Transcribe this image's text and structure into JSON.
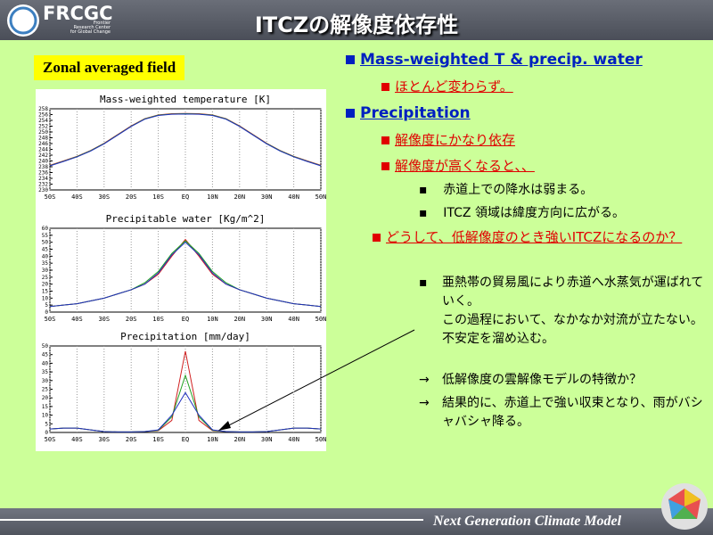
{
  "slide": {
    "title": "ITCZの解像度依存性",
    "logo": "FRCGC",
    "org": [
      "Frontier",
      "Research Center",
      "for Global Change"
    ],
    "panel_label": "Zonal averaged field",
    "footer": "Next Generation Climate Model",
    "items": [
      "Mass-weighted T & precip. water",
      "ほとんど変わらず。",
      "Precipitation",
      "解像度にかなり依存",
      "解像度が高くなると、、",
      "赤道上での降水は弱まる。",
      "ITCZ 領域は緯度方向に広がる。",
      "どうして、低解像度のとき強いITCZになるのか？",
      "亜熱帯の貿易風により赤道へ水蒸気が運ばれていく。",
      "この過程において、なかなか対流が立たない。",
      "不安定を溜め込む。",
      "低解像度の雲解像モデルの特徴か？",
      "結果的に、赤道上で強い収束となり、雨がバシャバシャ降る。"
    ]
  },
  "chart_data": [
    {
      "type": "line",
      "title": "Mass-weighted temperature [K]",
      "x": [
        -50,
        -45,
        -40,
        -35,
        -30,
        -25,
        -20,
        -15,
        -10,
        -5,
        0,
        5,
        10,
        15,
        20,
        25,
        30,
        35,
        40,
        45,
        50
      ],
      "xlim": [
        -50,
        50
      ],
      "xticks": [
        {
          "value": -50,
          "label": "50S"
        },
        {
          "value": -40,
          "label": "40S"
        },
        {
          "value": -30,
          "label": "30S"
        },
        {
          "value": -20,
          "label": "20S"
        },
        {
          "value": -10,
          "label": "10S"
        },
        {
          "value": 0,
          "label": "EQ"
        },
        {
          "value": 10,
          "label": "10N"
        },
        {
          "value": 20,
          "label": "20N"
        },
        {
          "value": 30,
          "label": "30N"
        },
        {
          "value": 40,
          "label": "40N"
        },
        {
          "value": 50,
          "label": "50N"
        }
      ],
      "ylim": [
        230,
        258
      ],
      "yticks": [
        230,
        232,
        234,
        236,
        238,
        240,
        242,
        244,
        246,
        248,
        250,
        252,
        254,
        256,
        258
      ],
      "series": [
        {
          "color": "#d02020",
          "values": [
            238.5,
            240,
            241.6,
            243.6,
            246.1,
            249.1,
            252.1,
            254.6,
            255.9,
            256.3,
            256.4,
            256.3,
            255.9,
            254.6,
            252.1,
            249.1,
            246.1,
            243.6,
            241.6,
            240,
            238.5
          ]
        },
        {
          "color": "#20a020",
          "values": [
            238.4,
            239.9,
            241.5,
            243.5,
            246,
            249,
            252,
            254.5,
            255.8,
            256.2,
            256.3,
            256.2,
            255.8,
            254.5,
            252,
            249,
            246,
            243.5,
            241.5,
            239.9,
            238.4
          ]
        },
        {
          "color": "#2030c0",
          "values": [
            238.3,
            239.8,
            241.4,
            243.4,
            245.9,
            248.9,
            251.9,
            254.4,
            255.7,
            256.1,
            256.2,
            256.1,
            255.7,
            254.4,
            251.9,
            248.9,
            245.9,
            243.4,
            241.4,
            239.8,
            238.3
          ]
        }
      ]
    },
    {
      "type": "line",
      "title": "Precipitable water [Kg/m^2]",
      "x": [
        -50,
        -45,
        -40,
        -35,
        -30,
        -25,
        -20,
        -15,
        -10,
        -5,
        0,
        5,
        10,
        15,
        20,
        25,
        30,
        35,
        40,
        45,
        50
      ],
      "xlim": [
        -50,
        50
      ],
      "xticks": [
        {
          "value": -50,
          "label": "50S"
        },
        {
          "value": -40,
          "label": "40S"
        },
        {
          "value": -30,
          "label": "30S"
        },
        {
          "value": -20,
          "label": "20S"
        },
        {
          "value": -10,
          "label": "10S"
        },
        {
          "value": 0,
          "label": "EQ"
        },
        {
          "value": 10,
          "label": "10N"
        },
        {
          "value": 20,
          "label": "20N"
        },
        {
          "value": 30,
          "label": "30N"
        },
        {
          "value": 40,
          "label": "40N"
        },
        {
          "value": 50,
          "label": "50N"
        }
      ],
      "ylim": [
        0,
        60
      ],
      "yticks": [
        0,
        5,
        10,
        15,
        20,
        25,
        30,
        35,
        40,
        45,
        50,
        55,
        60
      ],
      "series": [
        {
          "color": "#d02020",
          "values": [
            4,
            5,
            6,
            8,
            10,
            13,
            16,
            20,
            27,
            40,
            52,
            40,
            27,
            20,
            16,
            13,
            10,
            8,
            6,
            5,
            4
          ]
        },
        {
          "color": "#20a020",
          "values": [
            4,
            5,
            6,
            8,
            10,
            13,
            16,
            21,
            29,
            42,
            51,
            42,
            29,
            21,
            16,
            13,
            10,
            8,
            6,
            5,
            4
          ]
        },
        {
          "color": "#2030c0",
          "values": [
            4,
            5,
            6,
            8,
            10,
            13,
            16,
            20,
            28,
            41,
            50,
            41,
            28,
            20,
            16,
            13,
            10,
            8,
            6,
            5,
            4
          ]
        }
      ]
    },
    {
      "type": "line",
      "title": "Precipitation [mm/day]",
      "x": [
        -50,
        -45,
        -40,
        -35,
        -30,
        -25,
        -20,
        -15,
        -10,
        -5,
        0,
        5,
        10,
        15,
        20,
        25,
        30,
        35,
        40,
        45,
        50
      ],
      "xlim": [
        -50,
        50
      ],
      "xticks": [
        {
          "value": -50,
          "label": "50S"
        },
        {
          "value": -40,
          "label": "40S"
        },
        {
          "value": -30,
          "label": "30S"
        },
        {
          "value": -20,
          "label": "20S"
        },
        {
          "value": -10,
          "label": "10S"
        },
        {
          "value": 0,
          "label": "EQ"
        },
        {
          "value": 10,
          "label": "10N"
        },
        {
          "value": 20,
          "label": "20N"
        },
        {
          "value": 30,
          "label": "30N"
        },
        {
          "value": 40,
          "label": "40N"
        },
        {
          "value": 50,
          "label": "50N"
        }
      ],
      "ylim": [
        0,
        50
      ],
      "yticks": [
        0,
        5,
        10,
        15,
        20,
        25,
        30,
        35,
        40,
        45,
        50
      ],
      "series": [
        {
          "color": "#d02020",
          "values": [
            2,
            2.5,
            2.5,
            1.5,
            0.5,
            0.3,
            0.3,
            0.5,
            1,
            7,
            47,
            7,
            1,
            0.5,
            0.3,
            0.3,
            0.5,
            1.5,
            2.5,
            2.5,
            2
          ]
        },
        {
          "color": "#20a020",
          "values": [
            2,
            2.5,
            2.5,
            1.5,
            0.5,
            0.3,
            0.3,
            0.5,
            1.2,
            9,
            33,
            9,
            1.2,
            0.5,
            0.3,
            0.3,
            0.5,
            1.5,
            2.5,
            2.5,
            2
          ]
        },
        {
          "color": "#2030c0",
          "values": [
            2,
            2.5,
            2.5,
            1.5,
            0.5,
            0.3,
            0.3,
            0.5,
            1.5,
            10,
            23,
            10,
            1.5,
            0.5,
            0.3,
            0.3,
            0.5,
            1.5,
            2.5,
            2.5,
            2
          ]
        }
      ]
    }
  ]
}
